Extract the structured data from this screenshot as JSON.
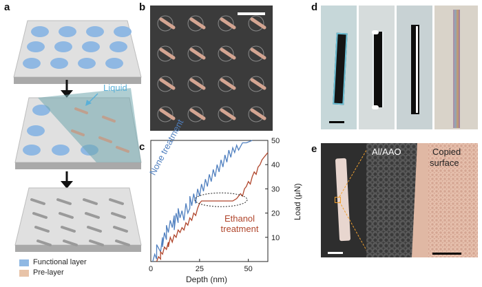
{
  "panels": {
    "a": {
      "label": "a",
      "liquid": "Liquid",
      "legend": [
        "Functional layer",
        "Pre-layer"
      ],
      "colors": {
        "functional": "#8fb8e3",
        "pre": "#e8c3a8",
        "liquid": "#6fa6ad",
        "slab": "#d8d8d8"
      }
    },
    "b": {
      "label": "b"
    },
    "c": {
      "label": "c"
    },
    "d": {
      "label": "d"
    },
    "e": {
      "label": "e",
      "left": "Al/AAO",
      "right_1": "Copied",
      "right_2": "surface"
    }
  },
  "chart_data": {
    "type": "line",
    "xlabel": "Depth (nm)",
    "ylabel": "Load (μN)",
    "xlim": [
      0,
      60
    ],
    "ylim": [
      0,
      50
    ],
    "x_ticks": [
      "0",
      "25",
      "50"
    ],
    "y_ticks": [
      "10",
      "20",
      "30",
      "40",
      "50"
    ],
    "series": [
      {
        "name": "None treatment",
        "color": "#4f7fbf",
        "x": [
          1,
          2,
          3,
          3,
          5,
          6,
          6,
          7,
          8,
          8,
          9,
          10,
          11,
          12,
          12,
          13,
          14,
          14,
          15,
          16,
          17,
          18,
          19,
          20,
          20,
          21,
          22,
          23,
          24,
          25,
          26,
          27,
          28,
          29,
          30,
          31,
          32,
          33,
          34,
          35,
          36,
          37,
          38,
          39,
          40,
          41,
          42,
          43,
          44,
          45,
          47,
          49,
          52
        ],
        "y": [
          0,
          3,
          1,
          7,
          4,
          10,
          6,
          12,
          9,
          15,
          12,
          17,
          14,
          19,
          13,
          20,
          16,
          22,
          18,
          21,
          17,
          24,
          20,
          22,
          27,
          23,
          28,
          24,
          30,
          27,
          32,
          29,
          34,
          31,
          36,
          33,
          38,
          35,
          40,
          37,
          42,
          39,
          44,
          41,
          46,
          43,
          47,
          45,
          48,
          46,
          49,
          49,
          50
        ]
      },
      {
        "name": "Ethanol treatment",
        "color": "#b0452b",
        "x": [
          3,
          4,
          5,
          5,
          6,
          7,
          8,
          9,
          9,
          10,
          11,
          12,
          13,
          14,
          15,
          16,
          17,
          18,
          19,
          20,
          21,
          22,
          23,
          24,
          25,
          26,
          28,
          30,
          33,
          36,
          39,
          42,
          44,
          46,
          47,
          48,
          49,
          50,
          51,
          52,
          53,
          54,
          55,
          56,
          57,
          58,
          59,
          60
        ],
        "y": [
          0,
          2,
          1,
          4,
          3,
          6,
          5,
          8,
          6,
          10,
          8,
          11,
          10,
          13,
          12,
          14,
          13,
          16,
          15,
          18,
          17,
          20,
          19,
          22,
          24,
          25,
          25,
          25,
          25,
          25,
          25,
          25,
          26,
          28,
          27,
          30,
          31,
          33,
          32,
          35,
          37,
          36,
          39,
          40,
          42,
          43,
          44,
          45
        ]
      }
    ],
    "annotation": "dotted ellipse around plateau near 25 μN"
  }
}
